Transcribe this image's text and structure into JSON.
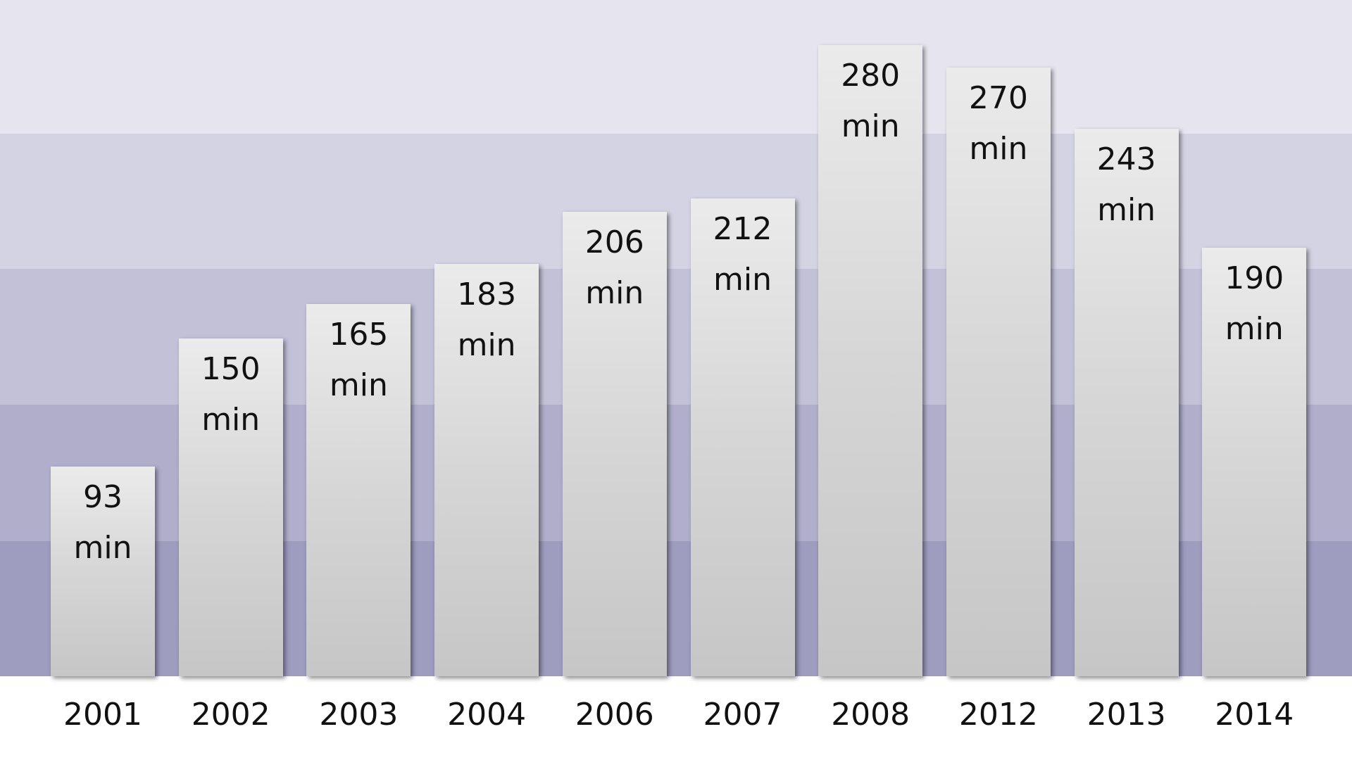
{
  "chart_data": {
    "type": "bar",
    "categories": [
      "2001",
      "2002",
      "2003",
      "2004",
      "2006",
      "2007",
      "2008",
      "2012",
      "2013",
      "2014"
    ],
    "values": [
      93,
      150,
      165,
      183,
      206,
      212,
      280,
      270,
      243,
      190
    ],
    "value_labels": [
      "93 min",
      "150 min",
      "165 min",
      "183 min",
      "206 min",
      "212 min",
      "280 min",
      "270 min",
      "243 min",
      "190 min"
    ],
    "color": "#d6d6d6",
    "ylim": [
      0,
      300
    ]
  }
}
